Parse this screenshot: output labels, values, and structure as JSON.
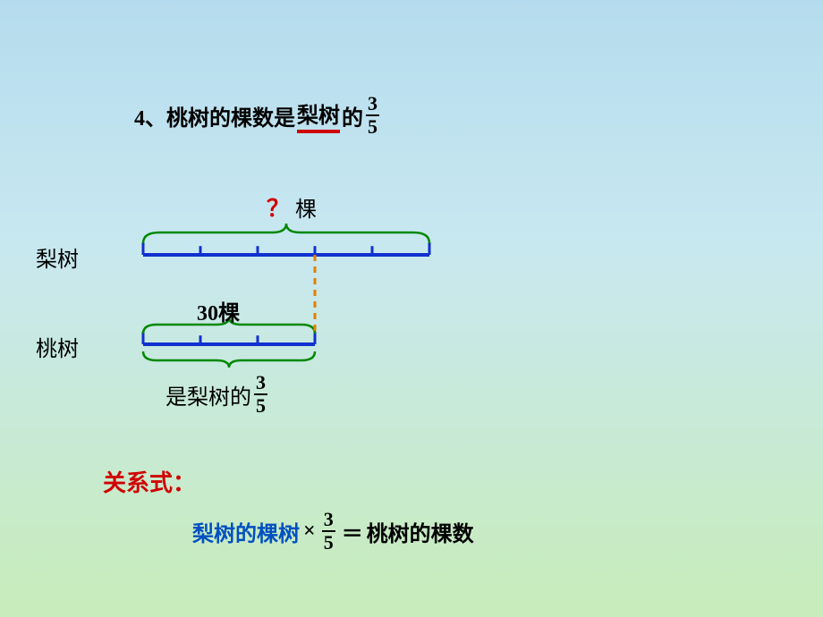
{
  "title": {
    "prefix": "4、桃树的棵数是",
    "underlined": "梨树",
    "suffix": "的",
    "frac_num": "3",
    "frac_den": "5"
  },
  "diagram": {
    "pear_label": "梨树",
    "peach_label": "桃树",
    "question": "？",
    "q_unit": "棵",
    "peach_count": "30棵",
    "bottom_prefix": "是梨树的",
    "bottom_frac_num": "3",
    "bottom_frac_den": "5",
    "segments_pear": 5,
    "segments_peach": 3,
    "seg_width": 64,
    "bar_y_pear": 80,
    "bar_y_peach": 180,
    "bar_x_start": 120,
    "tick_h": 14,
    "colors": {
      "bar": "#1030d0",
      "brace": "#008800",
      "dash": "#e08000"
    }
  },
  "relation": {
    "label": "关系式：",
    "lhs": "梨树的棵树",
    "times": "×",
    "frac_num": "3",
    "frac_den": "5",
    "equals": "＝",
    "rhs": "桃树的棵数"
  }
}
